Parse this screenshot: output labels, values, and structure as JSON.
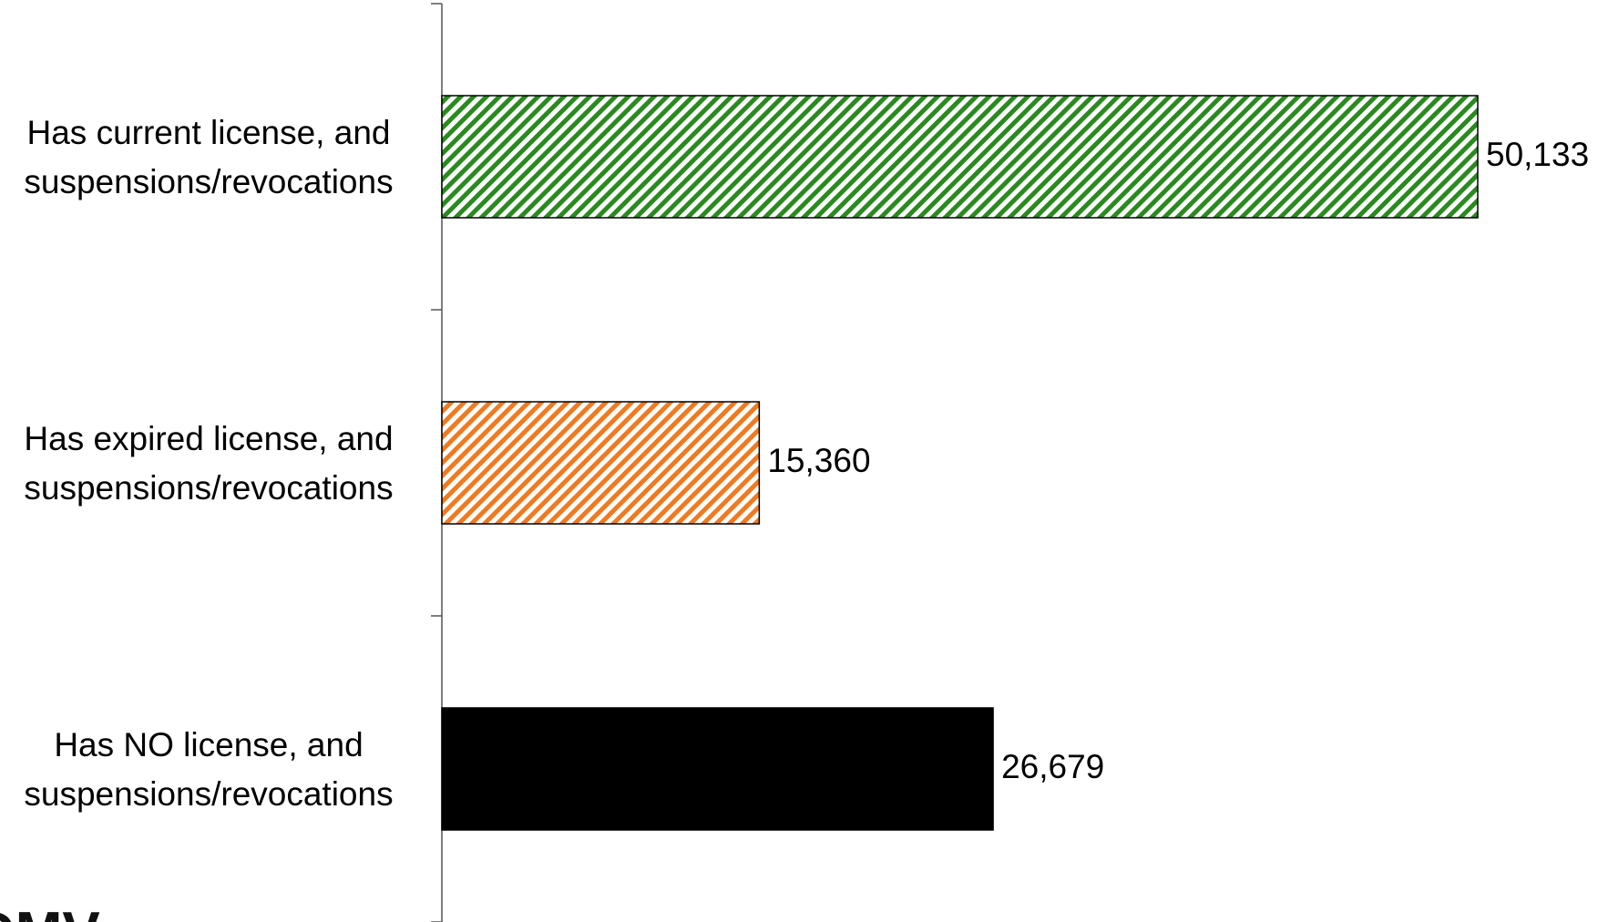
{
  "chart_data": {
    "type": "bar",
    "orientation": "horizontal",
    "categories": [
      [
        "Has current license, and",
        "suspensions/revocations"
      ],
      [
        "Has expired license, and",
        "suspensions/revocations"
      ],
      [
        "Has NO license, and",
        "suspensions/revocations"
      ]
    ],
    "values": [
      50133,
      15360,
      26679
    ],
    "value_labels": [
      "50,133",
      "15,360",
      "26,679"
    ],
    "bar_colors": [
      "#2a8a1f",
      "#f07a20",
      "#000000"
    ],
    "bar_fills": [
      "diagonal-hatch",
      "diagonal-hatch",
      "solid"
    ],
    "xlim": [
      0,
      50133
    ],
    "grid": false,
    "title": "",
    "xlabel": "",
    "ylabel": ""
  },
  "logo": {
    "text": "DMV"
  }
}
